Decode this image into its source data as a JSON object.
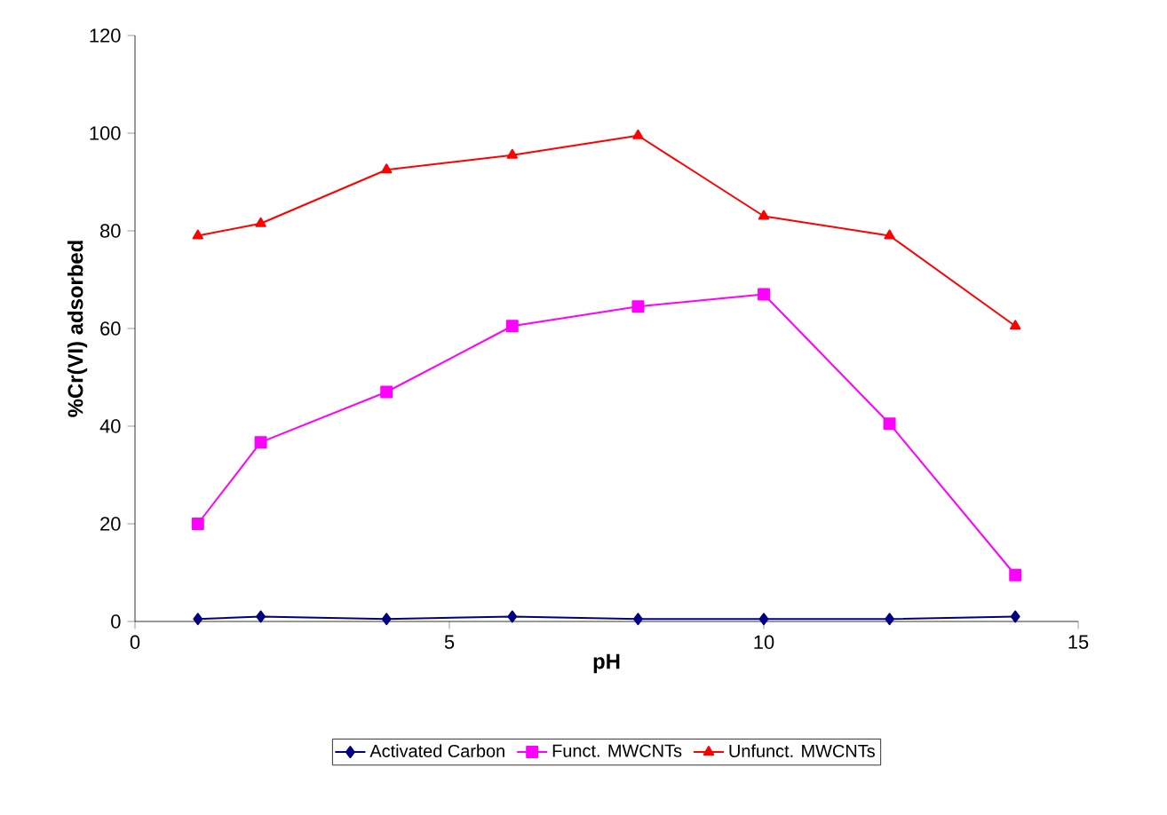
{
  "chart_data": {
    "type": "line",
    "xlabel": "pH",
    "ylabel": "%Cr(VI) adsorbed",
    "xlim": [
      0,
      15
    ],
    "xticks": [
      0,
      5,
      10,
      15
    ],
    "ylim": [
      0,
      120
    ],
    "yticks": [
      0,
      20,
      40,
      60,
      80,
      100,
      120
    ],
    "x": [
      1,
      2,
      4,
      6,
      8,
      10,
      12,
      14
    ],
    "legend": "bottom",
    "grid": false,
    "line_style": "solid",
    "series": [
      {
        "name": "Activated Carbon",
        "color": "#000080",
        "marker": "diamond",
        "values": [
          0.5,
          1,
          0.5,
          1,
          0.5,
          0.5,
          0.5,
          1
        ]
      },
      {
        "name": "Funct. MWCNTs",
        "color": "#ff00ff",
        "marker": "square",
        "values": [
          20,
          36.7,
          47,
          60.5,
          64.5,
          67,
          40.5,
          9.5
        ]
      },
      {
        "name": "Unfunct. MWCNTs",
        "color": "#ff0000",
        "marker": "triangle",
        "values": [
          79,
          81.5,
          92.5,
          95.5,
          99.5,
          83,
          79,
          60.5
        ]
      }
    ]
  }
}
